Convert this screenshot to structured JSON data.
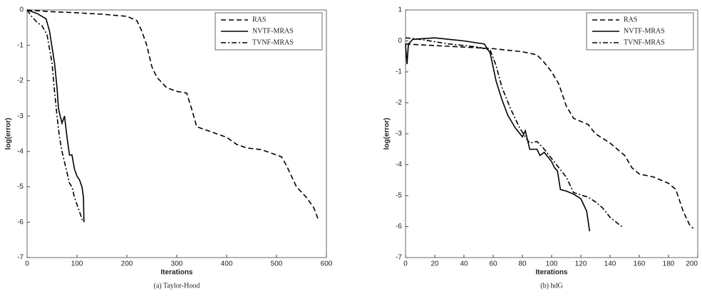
{
  "chart_data": [
    {
      "type": "line",
      "xlabel": "Iterations",
      "ylabel": "log(error)",
      "caption": "(a) Taylor-Hood",
      "xlim": [
        0,
        600
      ],
      "ylim": [
        -7,
        0
      ],
      "xticks": [
        0,
        100,
        200,
        300,
        400,
        500,
        600
      ],
      "yticks": [
        -7,
        -6,
        -5,
        -4,
        -3,
        -2,
        -1,
        0
      ],
      "legend": "upper right",
      "series": [
        {
          "name": "RAS",
          "color": "#000000",
          "linestyle": "dashed",
          "x": [
            0,
            50,
            100,
            150,
            200,
            220,
            230,
            240,
            250,
            260,
            280,
            300,
            320,
            330,
            340,
            360,
            380,
            400,
            420,
            440,
            470,
            490,
            510,
            520,
            530,
            540,
            560,
            575,
            583
          ],
          "values": [
            0,
            -0.05,
            -0.08,
            -0.12,
            -0.18,
            -0.3,
            -0.6,
            -1.0,
            -1.6,
            -1.9,
            -2.2,
            -2.3,
            -2.35,
            -2.8,
            -3.3,
            -3.4,
            -3.5,
            -3.6,
            -3.8,
            -3.9,
            -3.95,
            -4.05,
            -4.15,
            -4.4,
            -4.7,
            -5.0,
            -5.3,
            -5.6,
            -5.9
          ]
        },
        {
          "name": "NVTF-MRAS",
          "color": "#000000",
          "linestyle": "solid",
          "x": [
            0,
            20,
            38,
            45,
            55,
            60,
            63,
            70,
            75,
            80,
            85,
            90,
            95,
            100,
            105,
            110,
            113,
            114
          ],
          "values": [
            0,
            -0.1,
            -0.25,
            -0.6,
            -1.5,
            -2.2,
            -2.8,
            -3.2,
            -3.0,
            -3.6,
            -4.1,
            -4.1,
            -4.5,
            -4.7,
            -4.8,
            -5.0,
            -5.3,
            -6.0
          ]
        },
        {
          "name": "TVNF-MRAS",
          "color": "#000000",
          "linestyle": "dashdot",
          "x": [
            0,
            10,
            20,
            30,
            40,
            50,
            55,
            60,
            65,
            70,
            75,
            80,
            85,
            90,
            95,
            100,
            105,
            110,
            112
          ],
          "values": [
            0,
            -0.2,
            -0.35,
            -0.45,
            -0.7,
            -1.5,
            -2.3,
            -3.0,
            -3.6,
            -4.0,
            -4.3,
            -4.6,
            -4.9,
            -5.0,
            -5.3,
            -5.5,
            -5.7,
            -5.9,
            -6.0
          ]
        }
      ]
    },
    {
      "type": "line",
      "xlabel": "Iterations",
      "ylabel": "log(error)",
      "caption": "(b) hdG",
      "xlim": [
        0,
        200
      ],
      "ylim": [
        -7,
        1
      ],
      "xticks": [
        0,
        20,
        40,
        60,
        80,
        100,
        120,
        140,
        160,
        180,
        200
      ],
      "yticks": [
        -7,
        -6,
        -5,
        -4,
        -3,
        -2,
        -1,
        0,
        1
      ],
      "legend": "upper right",
      "series": [
        {
          "name": "RAS",
          "color": "#000000",
          "linestyle": "dashed",
          "x": [
            0,
            20,
            40,
            60,
            70,
            80,
            90,
            95,
            100,
            105,
            110,
            115,
            125,
            130,
            140,
            150,
            155,
            160,
            170,
            180,
            185,
            190,
            195,
            197
          ],
          "values": [
            -0.1,
            -0.15,
            -0.2,
            -0.25,
            -0.3,
            -0.35,
            -0.45,
            -0.7,
            -1.0,
            -1.4,
            -2.1,
            -2.5,
            -2.7,
            -3.0,
            -3.3,
            -3.7,
            -4.1,
            -4.3,
            -4.4,
            -4.6,
            -4.8,
            -5.5,
            -6.0,
            -6.05
          ]
        },
        {
          "name": "NVTF-MRAS",
          "color": "#000000",
          "linestyle": "solid",
          "x": [
            0,
            1,
            2,
            5,
            20,
            40,
            54,
            58,
            62,
            66,
            70,
            75,
            80,
            82,
            85,
            90,
            92,
            95,
            100,
            102,
            104,
            106,
            110,
            115,
            120,
            124,
            126
          ],
          "values": [
            -0.1,
            -0.75,
            -0.1,
            0.05,
            0.1,
            0,
            -0.1,
            -0.4,
            -1.3,
            -1.9,
            -2.4,
            -2.8,
            -3.1,
            -2.9,
            -3.5,
            -3.5,
            -3.7,
            -3.6,
            -3.9,
            -4.1,
            -4.2,
            -4.8,
            -4.85,
            -4.95,
            -5.1,
            -5.5,
            -6.15
          ]
        },
        {
          "name": "TVNF-MRAS",
          "color": "#000000",
          "linestyle": "dashdot",
          "x": [
            0,
            10,
            30,
            50,
            58,
            62,
            66,
            72,
            78,
            82,
            85,
            90,
            95,
            100,
            105,
            110,
            115,
            125,
            130,
            135,
            140,
            148
          ],
          "values": [
            0.1,
            0.05,
            -0.1,
            -0.2,
            -0.3,
            -0.8,
            -1.5,
            -2.2,
            -2.8,
            -3.1,
            -3.3,
            -3.25,
            -3.5,
            -3.8,
            -4.1,
            -4.4,
            -4.9,
            -5.05,
            -5.2,
            -5.4,
            -5.7,
            -6.0
          ]
        }
      ]
    }
  ]
}
